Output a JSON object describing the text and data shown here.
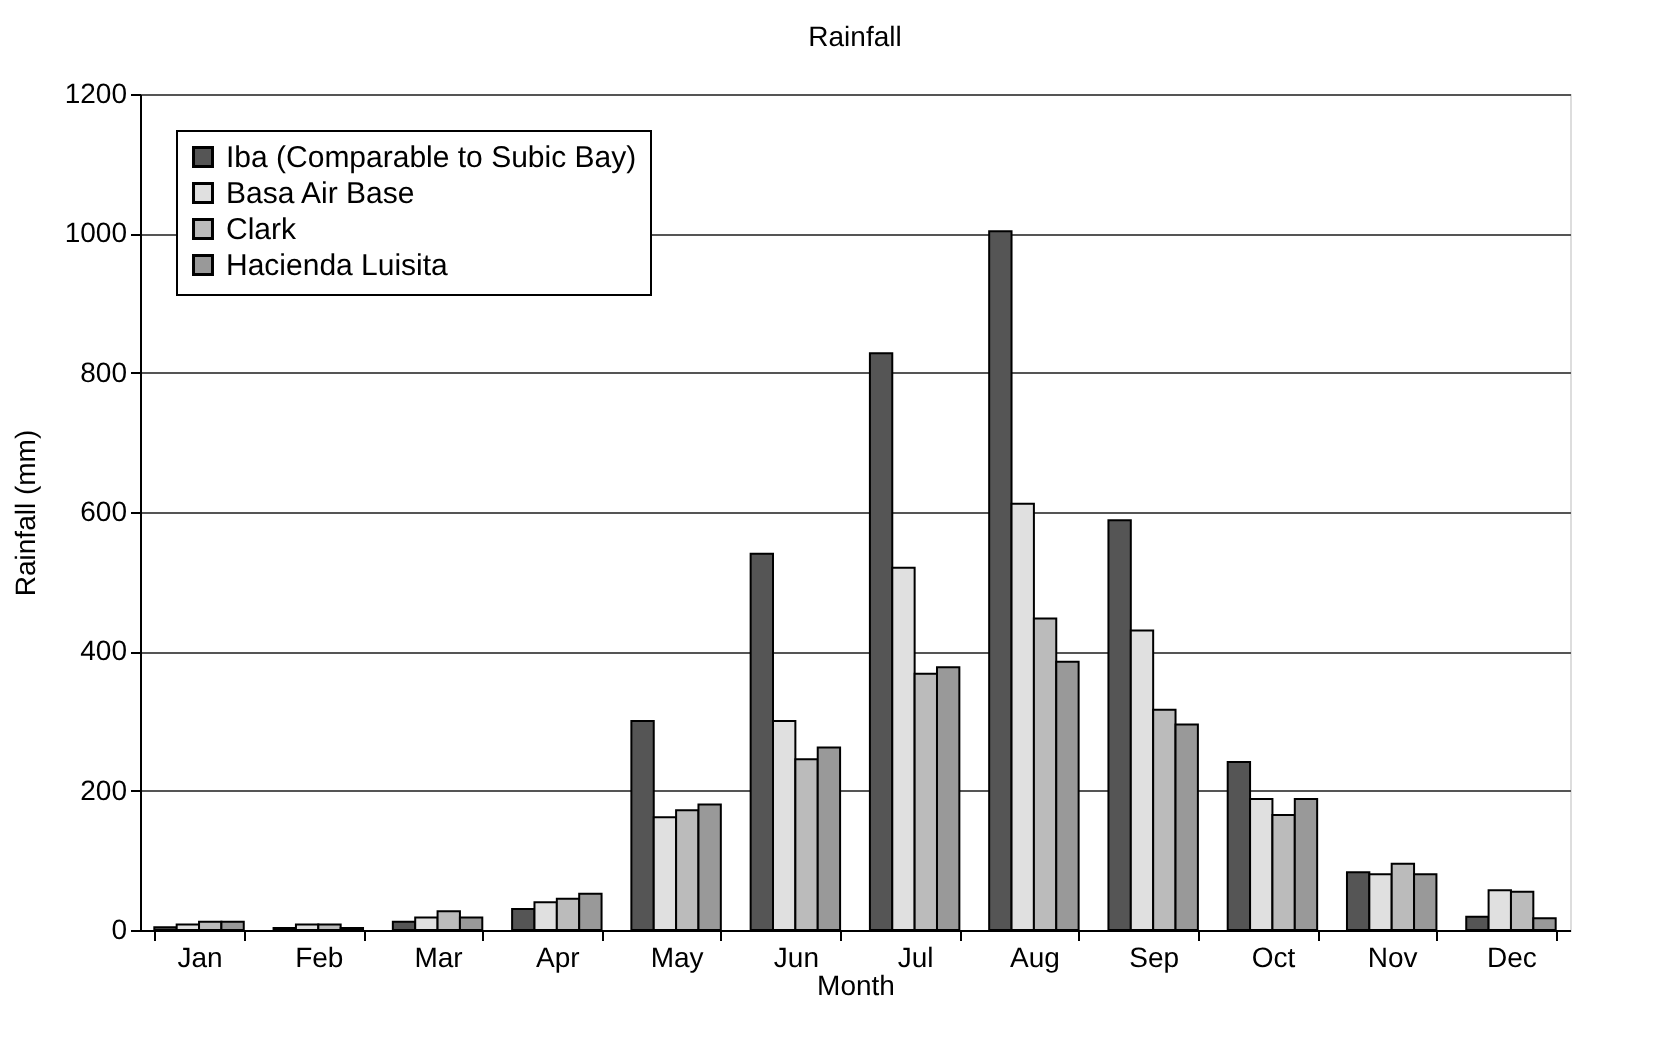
{
  "chart_data": {
    "type": "bar",
    "title": "Rainfall",
    "xlabel": "Month",
    "ylabel": "Rainfall (mm)",
    "categories": [
      "Jan",
      "Feb",
      "Mar",
      "Apr",
      "May",
      "Jun",
      "Jul",
      "Aug",
      "Sep",
      "Oct",
      "Nov",
      "Dec"
    ],
    "series": [
      {
        "name": "Iba (Comparable to Subic Bay)",
        "color": "#555555",
        "values": [
          4,
          3,
          12,
          30,
          300,
          540,
          828,
          1003,
          588,
          241,
          83,
          19
        ]
      },
      {
        "name": "Basa Air Base",
        "color": "#e0e0e0",
        "values": [
          8,
          8,
          18,
          40,
          162,
          300,
          520,
          612,
          430,
          188,
          80,
          57
        ]
      },
      {
        "name": "Clark",
        "color": "#bbbbbb",
        "values": [
          12,
          8,
          27,
          45,
          172,
          245,
          368,
          447,
          316,
          165,
          95,
          55
        ]
      },
      {
        "name": "Hacienda Luisita",
        "color": "#999999",
        "values": [
          12,
          3,
          18,
          52,
          180,
          262,
          377,
          385,
          295,
          188,
          80,
          17
        ]
      }
    ],
    "ylim": [
      0,
      1200
    ],
    "yticks": [
      0,
      200,
      400,
      600,
      800,
      1000,
      1200
    ],
    "grid": "y",
    "legend": "top left"
  }
}
